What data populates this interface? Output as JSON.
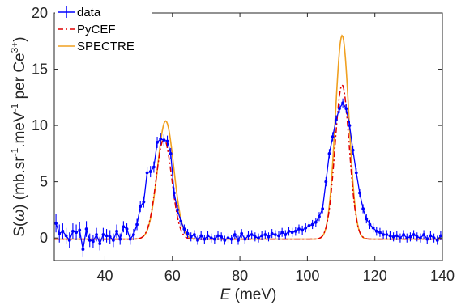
{
  "chart_data": {
    "type": "line",
    "xlabel": {
      "italic": "E",
      "rest": " (meV)"
    },
    "ylabel": {
      "prefix": "S(",
      "omega": "ω",
      "mid": ") (mb.sr",
      "sup1": "-1",
      "mid2": ".meV",
      "sup2": "-1",
      "end": " per Ce",
      "sup3": "3+",
      "close": ")"
    },
    "xlim": [
      25,
      140
    ],
    "ylim": [
      -2,
      20
    ],
    "xticks": [
      40,
      60,
      80,
      100,
      120,
      140
    ],
    "yticks": [
      0,
      5,
      10,
      15,
      20
    ],
    "grid": false,
    "legend_position": "top-left",
    "series": [
      {
        "name": "data",
        "style": "errorbar",
        "color": "#0000ff",
        "points": [
          [
            25.5,
            1.3,
            0.8
          ],
          [
            26.5,
            0.4,
            0.8
          ],
          [
            27.5,
            0.6,
            0.7
          ],
          [
            28.5,
            0.2,
            0.7
          ],
          [
            29.5,
            -0.2,
            0.7
          ],
          [
            30.5,
            0.6,
            0.7
          ],
          [
            31.5,
            0.5,
            0.7
          ],
          [
            32.5,
            0.7,
            0.7
          ],
          [
            33.5,
            -1.0,
            0.7
          ],
          [
            34.5,
            0.8,
            0.7
          ],
          [
            35.5,
            -0.2,
            0.6
          ],
          [
            36.5,
            -0.3,
            0.6
          ],
          [
            37.5,
            0.3,
            0.6
          ],
          [
            38.5,
            -0.5,
            0.6
          ],
          [
            39.5,
            0.3,
            0.6
          ],
          [
            40.5,
            0.2,
            0.6
          ],
          [
            41.5,
            0.1,
            0.6
          ],
          [
            42.5,
            -0.2,
            0.6
          ],
          [
            43.5,
            0.6,
            0.6
          ],
          [
            44.5,
            -0.1,
            0.5
          ],
          [
            45.5,
            1.0,
            0.5
          ],
          [
            46.5,
            0.8,
            0.5
          ],
          [
            47.5,
            -0.1,
            0.5
          ],
          [
            48.5,
            0.3,
            0.5
          ],
          [
            49.5,
            1.2,
            0.5
          ],
          [
            50.5,
            2.8,
            0.5
          ],
          [
            51.5,
            3.2,
            0.5
          ],
          [
            52.5,
            5.8,
            0.5
          ],
          [
            53.5,
            5.9,
            0.5
          ],
          [
            54.5,
            6.3,
            0.5
          ],
          [
            55.5,
            8.5,
            0.5
          ],
          [
            56.5,
            8.8,
            0.5
          ],
          [
            57.5,
            8.7,
            0.5
          ],
          [
            58.5,
            8.6,
            0.5
          ],
          [
            59.5,
            7.5,
            0.5
          ],
          [
            60.5,
            4.0,
            0.5
          ],
          [
            61.5,
            2.5,
            0.4
          ],
          [
            62.5,
            1.5,
            0.4
          ],
          [
            63.5,
            0.8,
            0.4
          ],
          [
            64.5,
            0.4,
            0.4
          ],
          [
            65.5,
            0.1,
            0.4
          ],
          [
            66.5,
            0.3,
            0.4
          ],
          [
            67.5,
            -0.2,
            0.4
          ],
          [
            68.5,
            0.2,
            0.4
          ],
          [
            69.5,
            -0.1,
            0.4
          ],
          [
            70.5,
            0.2,
            0.4
          ],
          [
            71.5,
            0.0,
            0.4
          ],
          [
            72.5,
            -0.1,
            0.4
          ],
          [
            73.5,
            0.2,
            0.4
          ],
          [
            74.5,
            0.1,
            0.4
          ],
          [
            75.5,
            -0.2,
            0.4
          ],
          [
            76.5,
            0.0,
            0.4
          ],
          [
            77.5,
            -0.1,
            0.4
          ],
          [
            78.5,
            0.3,
            0.4
          ],
          [
            79.5,
            -0.2,
            0.4
          ],
          [
            80.5,
            0.4,
            0.4
          ],
          [
            81.5,
            -0.1,
            0.4
          ],
          [
            82.5,
            0.2,
            0.4
          ],
          [
            83.5,
            0.3,
            0.4
          ],
          [
            84.5,
            0.1,
            0.4
          ],
          [
            85.5,
            0.0,
            0.4
          ],
          [
            86.5,
            0.2,
            0.4
          ],
          [
            87.5,
            0.3,
            0.4
          ],
          [
            88.5,
            0.1,
            0.4
          ],
          [
            89.5,
            0.4,
            0.4
          ],
          [
            90.5,
            0.3,
            0.4
          ],
          [
            91.5,
            0.2,
            0.4
          ],
          [
            92.5,
            0.5,
            0.4
          ],
          [
            93.5,
            0.3,
            0.4
          ],
          [
            94.5,
            0.6,
            0.4
          ],
          [
            95.5,
            0.5,
            0.4
          ],
          [
            96.5,
            0.6,
            0.4
          ],
          [
            97.5,
            0.8,
            0.4
          ],
          [
            98.5,
            0.7,
            0.4
          ],
          [
            99.5,
            0.9,
            0.4
          ],
          [
            100.5,
            1.1,
            0.4
          ],
          [
            101.5,
            1.2,
            0.4
          ],
          [
            102.5,
            1.4,
            0.4
          ],
          [
            103.5,
            1.9,
            0.4
          ],
          [
            104.5,
            2.6,
            0.4
          ],
          [
            105.5,
            5.0,
            0.4
          ],
          [
            106.5,
            7.5,
            0.4
          ],
          [
            107.5,
            9.0,
            0.4
          ],
          [
            108.5,
            10.5,
            0.4
          ],
          [
            109.5,
            11.5,
            0.4
          ],
          [
            110.5,
            12.0,
            0.4
          ],
          [
            111.5,
            11.5,
            0.4
          ],
          [
            112.5,
            10.0,
            0.4
          ],
          [
            113.5,
            7.8,
            0.4
          ],
          [
            114.5,
            5.8,
            0.4
          ],
          [
            115.5,
            4.0,
            0.4
          ],
          [
            116.5,
            2.6,
            0.4
          ],
          [
            117.5,
            1.7,
            0.4
          ],
          [
            118.5,
            1.2,
            0.4
          ],
          [
            119.5,
            0.9,
            0.4
          ],
          [
            120.5,
            0.6,
            0.4
          ],
          [
            121.5,
            0.5,
            0.4
          ],
          [
            122.5,
            0.3,
            0.4
          ],
          [
            123.5,
            0.3,
            0.4
          ],
          [
            124.5,
            0.2,
            0.4
          ],
          [
            125.5,
            0.1,
            0.4
          ],
          [
            126.5,
            0.2,
            0.4
          ],
          [
            127.5,
            0.0,
            0.4
          ],
          [
            128.5,
            0.3,
            0.4
          ],
          [
            129.5,
            0.0,
            0.4
          ],
          [
            130.5,
            0.1,
            0.4
          ],
          [
            131.5,
            0.3,
            0.4
          ],
          [
            132.5,
            0.1,
            0.4
          ],
          [
            133.5,
            0.0,
            0.4
          ],
          [
            134.5,
            0.3,
            0.4
          ],
          [
            135.5,
            -0.1,
            0.4
          ],
          [
            136.5,
            0.2,
            0.4
          ],
          [
            137.5,
            0.0,
            0.4
          ],
          [
            138.5,
            -0.2,
            0.4
          ],
          [
            139.5,
            0.2,
            0.4
          ]
        ]
      },
      {
        "name": "PyCEF",
        "style": "dashdot",
        "color": "#e00000",
        "baseline": -0.1,
        "peaks": [
          {
            "center": 57.5,
            "height": 8.9,
            "sigma": 2.3
          },
          {
            "center": 110.3,
            "height": 13.7,
            "sigma": 2.1
          }
        ]
      },
      {
        "name": "SPECTRE",
        "style": "solid",
        "color": "#f0a020",
        "baseline": -0.1,
        "peaks": [
          {
            "center": 58.0,
            "height": 10.5,
            "sigma": 2.4
          },
          {
            "center": 110.3,
            "height": 18.1,
            "sigma": 2.0
          }
        ]
      }
    ]
  }
}
